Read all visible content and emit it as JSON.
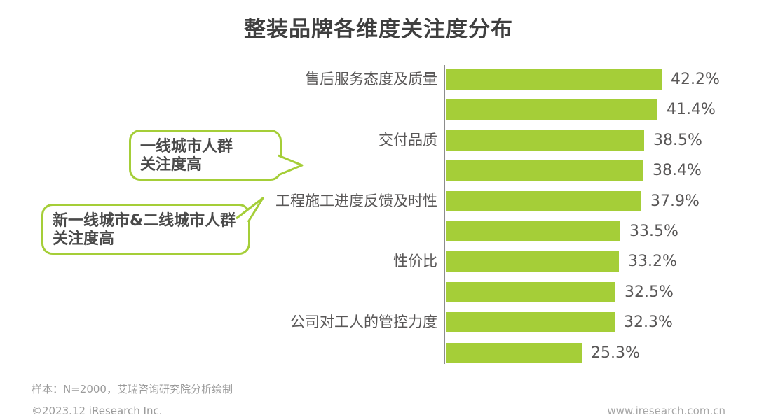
{
  "chart_data": {
    "type": "bar",
    "orientation": "horizontal",
    "title": "整装品牌各维度关注度分布",
    "unit": "%",
    "categories": [
      "售后服务态度及质量",
      "",
      "交付品质",
      "",
      "工程施工进度反馈及时性",
      "",
      "性价比",
      "",
      "公司对工人的管控力度",
      ""
    ],
    "values": [
      42.2,
      41.4,
      38.5,
      38.4,
      37.9,
      33.5,
      33.2,
      32.5,
      32.3,
      25.3
    ],
    "value_labels": [
      "42.2%",
      "41.4%",
      "38.5%",
      "38.4%",
      "37.9%",
      "33.5%",
      "33.2%",
      "32.5%",
      "32.3%",
      "25.3%"
    ],
    "xlim": [
      0,
      45
    ],
    "grid": false,
    "legend": null
  },
  "annotations": [
    {
      "line1": "一线城市人群",
      "line2": "关注度高"
    },
    {
      "line1": "新一线城市&二线城市人群",
      "line2": "关注度高"
    }
  ],
  "footer": {
    "sample_note": "样本：N=2000，艾瑞咨询研究院分析绘制",
    "copyright": "©2023.12 iResearch Inc.",
    "website": "www.iresearch.com.cn"
  },
  "colors": {
    "bar": "#a5ce38",
    "callout_border": "#a5ce38",
    "axis": "#8c8c8c",
    "label_text": "#595757",
    "title_text": "#3f3f3f",
    "footer_text": "#9b9b9b"
  }
}
